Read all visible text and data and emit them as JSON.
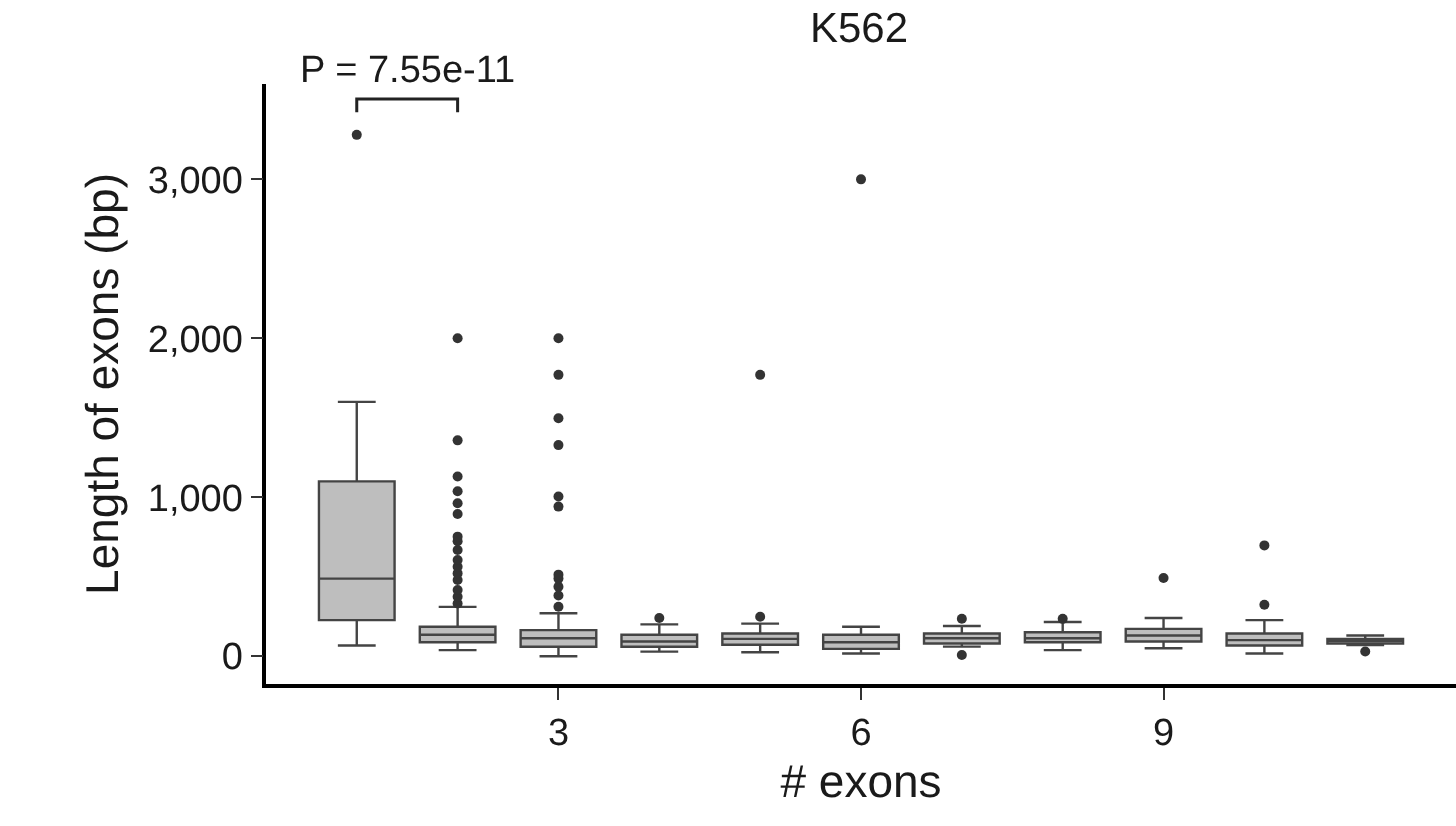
{
  "chart_data": {
    "type": "box",
    "title": "K562",
    "xlabel": "# exons",
    "ylabel": "Length of exons (bp)",
    "categories": [
      null,
      null,
      "3",
      null,
      null,
      "6",
      null,
      null,
      "9",
      null,
      null
    ],
    "color": "#bebebe",
    "boxes": [
      {
        "low": 67,
        "q1": 227,
        "median": 488,
        "q3": 1100,
        "high": 1600,
        "outliers": [
          3280
        ]
      },
      {
        "low": 38,
        "q1": 88,
        "median": 135,
        "q3": 185,
        "high": 310,
        "outliers": [
          332,
          374,
          416,
          479,
          521,
          563,
          605,
          668,
          723,
          752,
          895,
          962,
          1038,
          1130,
          1358,
          2000
        ]
      },
      {
        "low": 0,
        "q1": 59,
        "median": 113,
        "q3": 164,
        "high": 270,
        "outliers": [
          311,
          382,
          437,
          488,
          513,
          941,
          1005,
          1328,
          1497,
          1770,
          2000
        ]
      },
      {
        "low": 29,
        "q1": 59,
        "median": 92,
        "q3": 135,
        "high": 200,
        "outliers": [
          240
        ]
      },
      {
        "low": 25,
        "q1": 72,
        "median": 109,
        "q3": 143,
        "high": 205,
        "outliers": [
          248,
          1770
        ]
      },
      {
        "low": 17,
        "q1": 46,
        "median": 88,
        "q3": 135,
        "high": 185,
        "outliers": [
          3000
        ]
      },
      {
        "low": 60,
        "q1": 80,
        "median": 113,
        "q3": 143,
        "high": 190,
        "outliers": [
          8,
          236
        ]
      },
      {
        "low": 38,
        "q1": 88,
        "median": 113,
        "q3": 151,
        "high": 215,
        "outliers": [
          235
        ]
      },
      {
        "low": 50,
        "q1": 92,
        "median": 130,
        "q3": 172,
        "high": 240,
        "outliers": [
          492
        ]
      },
      {
        "low": 17,
        "q1": 67,
        "median": 101,
        "q3": 143,
        "high": 227,
        "outliers": [
          324,
          697
        ]
      },
      {
        "low": 70,
        "q1": 80,
        "median": 101,
        "q3": 109,
        "high": 130,
        "outliers": [
          29
        ]
      }
    ],
    "ylim": [
      -175,
      3600
    ],
    "yticks": [
      {
        "value": 0,
        "label": "0"
      },
      {
        "value": 1000,
        "label": "1,000"
      },
      {
        "value": 2000,
        "label": "2,000"
      },
      {
        "value": 3000,
        "label": "3,000"
      }
    ],
    "annotations": [
      "P = 7.55e-11"
    ]
  }
}
